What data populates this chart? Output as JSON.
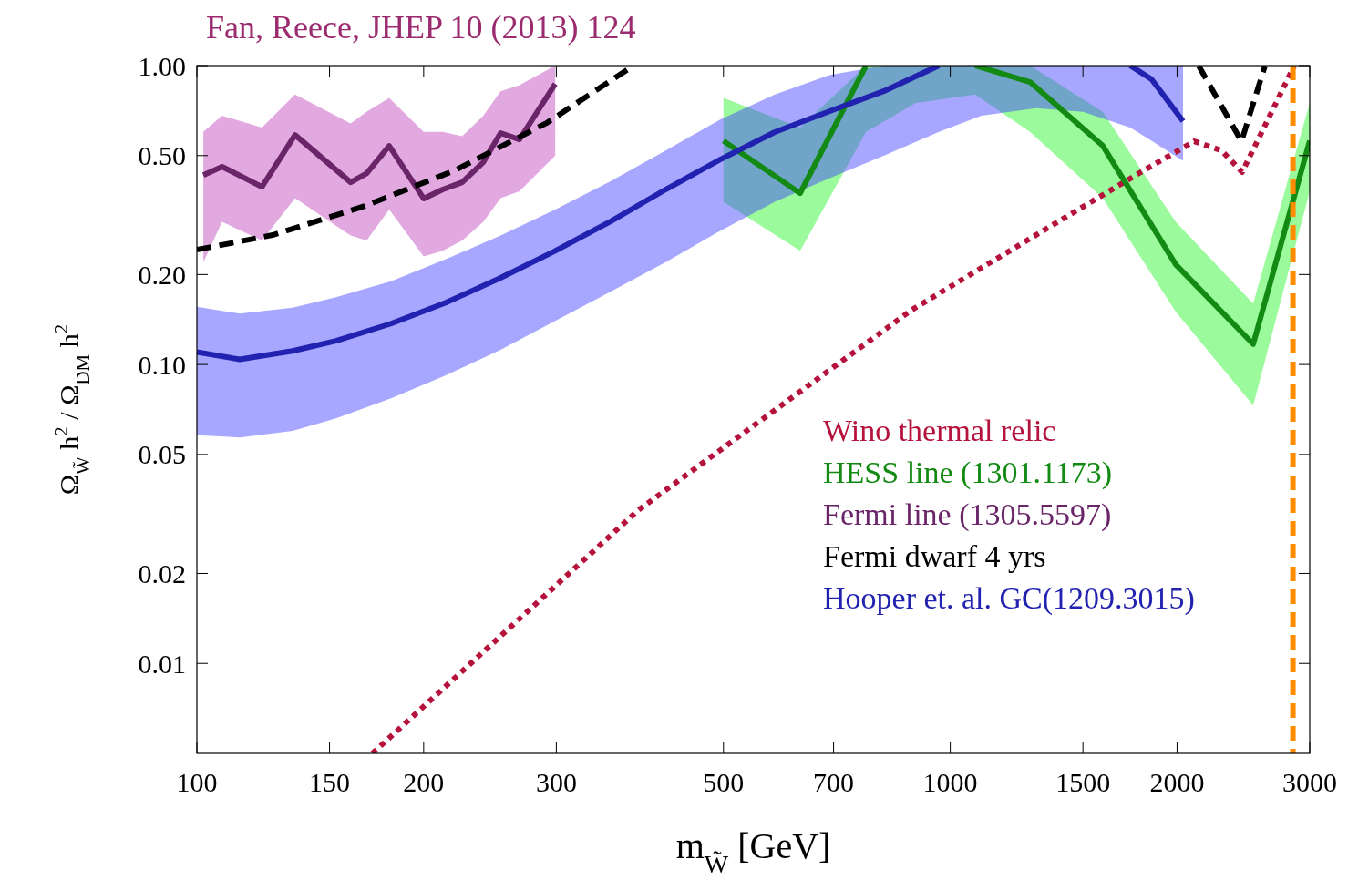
{
  "chart_data": {
    "type": "line",
    "title": "Fan, Reece, JHEP 10 (2013) 124",
    "xlabel": "m$_{W̃}$ [GeV]",
    "ylabel": "Ω$_{W̃}$ h$^{2}$ / Ω$_{DM}$ h$^{2}$",
    "log": "xy",
    "xlim": [
      100,
      3000
    ],
    "ylim": [
      0.005,
      1
    ],
    "xticks": [
      100,
      150,
      200,
      300,
      500,
      700,
      1000,
      1500,
      2000,
      3000
    ],
    "yticks": [
      {
        "value": 0.01,
        "label": "0.01"
      },
      {
        "value": 0.02,
        "label": "0.02"
      },
      {
        "value": 0.05,
        "label": "0.05"
      },
      {
        "value": 0.1,
        "label": "0.10"
      },
      {
        "value": 0.2,
        "label": "0.20"
      },
      {
        "value": 0.5,
        "label": "0.50"
      },
      {
        "value": 1,
        "label": "1.00"
      }
    ],
    "grid": false,
    "legend": "bottom right",
    "series": [
      {
        "name": "Wino thermal relic",
        "color": "#b5123c",
        "line_style": "dotted",
        "x": [
          171,
          385,
          888,
          1349,
          1782,
          2107,
          2291,
          2440,
          2862
        ],
        "values": [
          0.005,
          0.0325,
          0.152,
          0.287,
          0.437,
          0.558,
          0.52,
          0.44,
          1.0
        ]
      },
      {
        "name": "HESS line (1301.1173)",
        "color": "#138a13",
        "line_style": "solid",
        "x": [
          500,
          632,
          773,
          900,
          1079,
          1276,
          1594,
          1992,
          2524,
          3000
        ],
        "values": [
          0.56,
          0.374,
          1.0,
          null,
          1.0,
          0.881,
          0.539,
          0.216,
          0.117,
          0.56
        ],
        "lower": [
          0.35,
          0.24,
          0.6,
          0.75,
          0.8,
          0.6,
          0.36,
          0.15,
          0.073,
          0.38
        ],
        "upper": [
          0.78,
          0.62,
          1.0,
          1.0,
          1.0,
          1.0,
          0.7,
          0.3,
          0.16,
          0.75
        ]
      },
      {
        "name": "Fermi line (1305.5597)",
        "color": "#6a2468",
        "line_style": "solid",
        "x": [
          102,
          108,
          122,
          135,
          160,
          168,
          180,
          200,
          212,
          225,
          240,
          253,
          268,
          299
        ],
        "values": [
          0.43,
          0.459,
          0.393,
          0.586,
          0.407,
          0.436,
          0.539,
          0.359,
          0.385,
          0.407,
          0.475,
          0.595,
          0.566,
          0.869
        ],
        "lower": [
          0.22,
          0.3,
          0.26,
          0.36,
          0.27,
          0.26,
          0.33,
          0.23,
          0.24,
          0.26,
          0.3,
          0.36,
          0.38,
          0.5
        ],
        "upper": [
          0.6,
          0.68,
          0.62,
          0.8,
          0.64,
          0.7,
          0.78,
          0.6,
          0.6,
          0.58,
          0.68,
          0.82,
          0.86,
          1.0
        ]
      },
      {
        "name": "Fermi dwarf 4 yrs",
        "color": "#000000",
        "line_style": "dashed",
        "x": [
          100,
          126,
          167,
          220,
          291,
          380,
          1000,
          2136,
          2435,
          2617
        ],
        "values": [
          0.242,
          0.271,
          0.339,
          0.446,
          0.642,
          1.0,
          null,
          1.0,
          0.558,
          1.0
        ]
      },
      {
        "name": "Hooper et. al. GC(1209.3015)",
        "color": "#2222b0",
        "line_style": "solid",
        "x": [
          100,
          114,
          134,
          153,
          181,
          214,
          253,
          299,
          354,
          419,
          495,
          585,
          692,
          817,
          966,
          1100,
          1300,
          1500,
          1733,
          1850,
          2037
        ],
        "values": [
          0.11,
          0.104,
          0.111,
          0.12,
          0.137,
          0.161,
          0.195,
          0.24,
          0.301,
          0.385,
          0.485,
          0.599,
          0.704,
          0.822,
          1.0,
          null,
          null,
          null,
          1.0,
          0.9,
          0.652
        ],
        "lower": [
          0.058,
          0.057,
          0.06,
          0.066,
          0.077,
          0.092,
          0.112,
          0.14,
          0.175,
          0.22,
          0.28,
          0.35,
          0.42,
          0.5,
          0.6,
          0.68,
          0.72,
          0.7,
          0.62,
          0.56,
          0.48
        ],
        "upper": [
          0.156,
          0.148,
          0.155,
          0.168,
          0.19,
          0.225,
          0.27,
          0.33,
          0.41,
          0.52,
          0.66,
          0.8,
          0.93,
          1.0,
          1.0,
          1.0,
          1.0,
          1.0,
          1.0,
          1.0,
          1.0
        ]
      }
    ],
    "ref_lines": [
      {
        "axis": "x",
        "value": 2850,
        "color": "#ff8c00",
        "line_style": "dashed"
      }
    ]
  }
}
